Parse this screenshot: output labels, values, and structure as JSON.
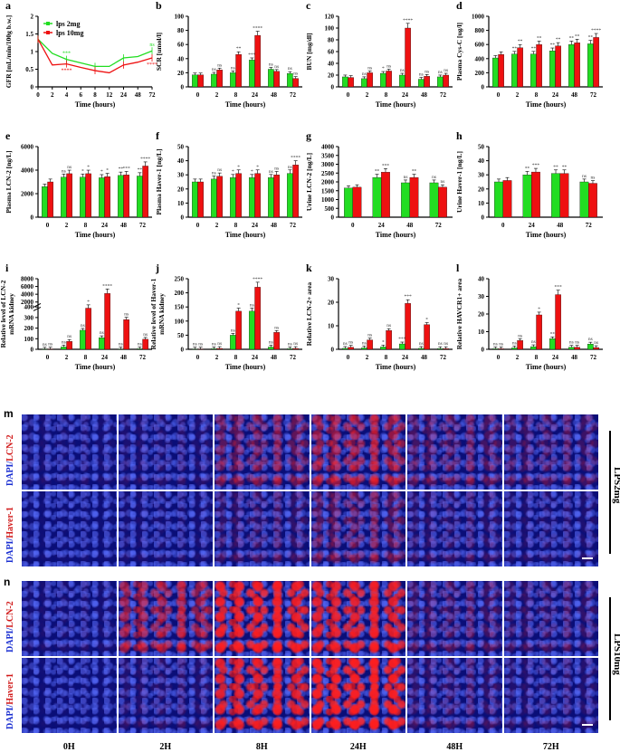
{
  "panel_letters": {
    "m": "m",
    "n": "n"
  },
  "microscopy": {
    "columns": [
      "0H",
      "2H",
      "8H",
      "24H",
      "48H",
      "72H"
    ],
    "panels": [
      {
        "letter": "m",
        "group": "LPS2mg",
        "rows": [
          {
            "dapi": "DAPI/",
            "marker": "LCN-2",
            "intensity": [
              0.05,
              0.08,
              0.35,
              0.55,
              0.25,
              0.2
            ]
          },
          {
            "dapi": "DAPI/",
            "marker": "Haver-1",
            "intensity": [
              0.02,
              0.05,
              0.15,
              0.3,
              0.12,
              0.08
            ]
          }
        ]
      },
      {
        "letter": "n",
        "group": "LPS10mg",
        "rows": [
          {
            "dapi": "DAPI/",
            "marker": "LCN-2",
            "intensity": [
              0.05,
              0.55,
              0.9,
              0.85,
              0.2,
              0.15
            ]
          },
          {
            "dapi": "DAPI/",
            "marker": "Haver-1",
            "intensity": [
              0.02,
              0.1,
              0.85,
              0.95,
              0.15,
              0.1
            ]
          }
        ]
      }
    ]
  },
  "colors": {
    "green": "#22dd22",
    "red": "#ee1111",
    "axis": "#000000"
  },
  "chart_data": [
    {
      "letter": "a",
      "type": "line",
      "ylabel": "GFR [mL/min/100g b.w.]",
      "xlabel": "Time (hours)",
      "x": [
        "0",
        "2",
        "4",
        "6",
        "8",
        "12",
        "24",
        "48",
        "72"
      ],
      "ylim": [
        0,
        2.0
      ],
      "yticks": [
        0,
        0.5,
        1.0,
        1.5,
        2.0
      ],
      "legend": [
        "lps 2mg",
        "lps 10mg"
      ],
      "series": [
        {
          "name": "lps 2mg",
          "values": [
            1.35,
            0.95,
            0.78,
            0.68,
            0.58,
            0.58,
            0.82,
            0.86,
            1.02
          ]
        },
        {
          "name": "lps 10mg",
          "values": [
            1.35,
            0.62,
            0.65,
            0.55,
            0.46,
            0.4,
            0.62,
            0.7,
            0.82
          ]
        }
      ],
      "sig_green": [
        {
          "x": 2,
          "t": "***"
        },
        {
          "x": 8,
          "t": "ns"
        }
      ],
      "sig_red": [
        {
          "x": 2,
          "t": "****"
        },
        {
          "x": 8,
          "t": "****"
        }
      ]
    },
    {
      "letter": "b",
      "type": "bar",
      "ylabel": "SCR [umol/l]",
      "xlabel": "Time (hours)",
      "categories": [
        "0",
        "2",
        "8",
        "24",
        "48",
        "72"
      ],
      "ylim": [
        0,
        100
      ],
      "yticks": [
        0,
        20,
        40,
        60,
        80,
        100
      ],
      "green": [
        17,
        18,
        20,
        38,
        25,
        19
      ],
      "red": [
        17,
        24,
        46,
        73,
        22,
        12
      ],
      "sig_green": [
        "",
        "ns",
        "ns",
        "***",
        "ns",
        "ns"
      ],
      "sig_red": [
        "",
        "ns",
        "**",
        "****",
        "ns",
        "ns"
      ]
    },
    {
      "letter": "c",
      "type": "bar",
      "ylabel": "BUN [mg/dl]",
      "xlabel": "Time (hours)",
      "categories": [
        "0",
        "2",
        "8",
        "24",
        "48",
        "72"
      ],
      "ylim": [
        0,
        120
      ],
      "yticks": [
        0,
        20,
        40,
        60,
        80,
        100,
        120
      ],
      "green": [
        17,
        14,
        23,
        20,
        13,
        17
      ],
      "red": [
        16,
        24,
        27,
        100,
        18,
        20
      ],
      "sig_green": [
        "",
        "ns",
        "*",
        "ns",
        "ns",
        "ns"
      ],
      "sig_red": [
        "",
        "ns",
        "ns",
        "****",
        "ns",
        "ns"
      ]
    },
    {
      "letter": "d",
      "type": "bar",
      "ylabel": "Plasma Cys-C [ug/l]",
      "xlabel": "Time (hours)",
      "categories": [
        "0",
        "2",
        "8",
        "24",
        "48",
        "72"
      ],
      "ylim": [
        0,
        1000
      ],
      "yticks": [
        0,
        200,
        400,
        600,
        800,
        1000
      ],
      "green": [
        410,
        465,
        465,
        510,
        600,
        610
      ],
      "red": [
        460,
        555,
        600,
        580,
        625,
        700
      ],
      "sig_green": [
        "",
        "**",
        "**",
        "**",
        "**",
        "**"
      ],
      "sig_red": [
        "",
        "**",
        "**",
        "**",
        "**",
        "****"
      ]
    },
    {
      "letter": "e",
      "type": "bar",
      "ylabel": "Plasma LCN-2 [ng/L]",
      "xlabel": "Time (hours)",
      "categories": [
        "0",
        "2",
        "8",
        "24",
        "48",
        "72"
      ],
      "ylim": [
        0,
        6000
      ],
      "yticks": [
        0,
        2000,
        4000,
        6000
      ],
      "green": [
        2600,
        3400,
        3400,
        3350,
        3550,
        3500
      ],
      "red": [
        3000,
        3700,
        3700,
        3450,
        3600,
        4350
      ],
      "sig_green": [
        "",
        "ns",
        "*",
        "*",
        "**",
        "**"
      ],
      "sig_red": [
        "",
        "ns",
        "*",
        "*",
        "***",
        "****"
      ]
    },
    {
      "letter": "f",
      "type": "bar",
      "ylabel": "Plasma Haver-1 [ng/L]",
      "xlabel": "Time (hours)",
      "categories": [
        "0",
        "2",
        "8",
        "24",
        "48",
        "72"
      ],
      "ylim": [
        0,
        50
      ],
      "yticks": [
        0,
        10,
        20,
        30,
        40,
        50
      ],
      "green": [
        25,
        27,
        28,
        28,
        28,
        31
      ],
      "red": [
        25,
        29,
        31,
        31,
        30,
        37
      ],
      "sig_green": [
        "",
        "ns",
        "*",
        "*",
        "ns",
        "ns"
      ],
      "sig_red": [
        "",
        "ns",
        "*",
        "*",
        "ns",
        "****"
      ]
    },
    {
      "letter": "g",
      "type": "bar",
      "ylabel": "Urine LCN-2 [ng/L]",
      "xlabel": "Time (hours)",
      "categories": [
        "0",
        "24",
        "48",
        "72"
      ],
      "ylim": [
        0,
        4000
      ],
      "yticks": [
        0,
        500,
        1000,
        1500,
        2000,
        2500,
        3000,
        3500,
        4000
      ],
      "green": [
        1650,
        2250,
        1950,
        1950
      ],
      "red": [
        1700,
        2550,
        2250,
        1700
      ],
      "sig_green": [
        "",
        "**",
        "ns",
        "ns"
      ],
      "sig_red": [
        "",
        "***",
        "**",
        "ns"
      ]
    },
    {
      "letter": "h",
      "type": "bar",
      "ylabel": "Urine Haver-1 [ng/L]",
      "xlabel": "Time (hours)",
      "categories": [
        "0",
        "24",
        "48",
        "72"
      ],
      "ylim": [
        0,
        50
      ],
      "yticks": [
        0,
        10,
        20,
        30,
        40,
        50
      ],
      "green": [
        25,
        30,
        31,
        25
      ],
      "red": [
        26,
        32,
        31,
        24
      ],
      "sig_green": [
        "",
        "**",
        "**",
        "ns"
      ],
      "sig_red": [
        "",
        "***",
        "**",
        "ns"
      ]
    },
    {
      "letter": "i",
      "type": "bar",
      "ylabel": "Relative level of LCN-2 mRNA kidney",
      "xlabel": "Time (hours)",
      "categories": [
        "0",
        "2",
        "8",
        "24",
        "48",
        "72"
      ],
      "yticks": [
        "0",
        "100",
        "200",
        "300",
        "400",
        "2000",
        "4000",
        "6000",
        "8000"
      ],
      "green": [
        2,
        22,
        180,
        110,
        3,
        5
      ],
      "red": [
        3,
        75,
        420,
        4200,
        280,
        95
      ],
      "sig_green": [
        "ns",
        "ns",
        "ns",
        "ns",
        "ns",
        "ns"
      ],
      "sig_red": [
        "ns",
        "ns",
        "*",
        "****",
        "ns",
        "ns"
      ]
    },
    {
      "letter": "j",
      "type": "bar",
      "ylabel": "Relative level of Haver-1 mRNA kidney",
      "xlabel": "Time (hours)",
      "categories": [
        "0",
        "2",
        "8",
        "24",
        "48",
        "72"
      ],
      "ylim": [
        0,
        250
      ],
      "yticks": [
        0,
        50,
        100,
        150,
        200,
        250
      ],
      "green": [
        1,
        2,
        50,
        135,
        8,
        2
      ],
      "red": [
        1,
        3,
        135,
        220,
        60,
        3
      ],
      "sig_green": [
        "ns",
        "ns",
        "ns",
        "ns",
        "ns",
        "ns"
      ],
      "sig_red": [
        "ns",
        "ns",
        "*",
        "****",
        "ns",
        "ns"
      ]
    },
    {
      "letter": "k",
      "type": "bar",
      "ylabel": "Relative LCN-2+ area",
      "xlabel": "Time (hours)",
      "categories": [
        "0",
        "2",
        "8",
        "24",
        "48",
        "72"
      ],
      "ylim": [
        0,
        30
      ],
      "yticks": [
        0,
        10,
        20,
        30
      ],
      "green": [
        0.4,
        0.6,
        1.0,
        2.3,
        0.4,
        0.3
      ],
      "red": [
        0.9,
        4.0,
        8.0,
        19.5,
        10.5,
        0.3
      ],
      "sig_green": [
        "ns",
        "ns",
        "*",
        "***",
        "ns",
        "ns"
      ],
      "sig_red": [
        "ns",
        "ns",
        "ns",
        "***",
        "*",
        "ns"
      ]
    },
    {
      "letter": "l",
      "type": "bar",
      "ylabel": "Relative HAVCR1+ area",
      "xlabel": "Time (hours)",
      "categories": [
        "0",
        "2",
        "8",
        "24",
        "48",
        "72"
      ],
      "ylim": [
        0,
        40
      ],
      "yticks": [
        0,
        10,
        20,
        30,
        40
      ],
      "green": [
        0.3,
        0.8,
        1.5,
        6.0,
        1.2,
        3.0
      ],
      "red": [
        0.3,
        5.0,
        19.5,
        31.0,
        1.2,
        1.0
      ],
      "sig_green": [
        "ns",
        "ns",
        "ns",
        "**",
        "ns",
        "ns"
      ],
      "sig_red": [
        "ns",
        "ns",
        "*",
        "***",
        "ns",
        "ns"
      ]
    }
  ]
}
